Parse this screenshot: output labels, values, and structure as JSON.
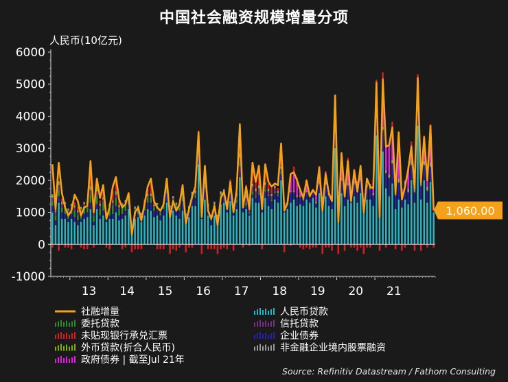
{
  "chart_data": {
    "type": "bar",
    "title": "中国社会融资规模增量分项",
    "ylabel": "人民币(10亿元)",
    "source": "Source: Refinitiv Datastream / Fathom Consulting",
    "ylim": [
      -1000,
      6000
    ],
    "yticks": [
      -1000,
      0,
      1000,
      2000,
      3000,
      4000,
      5000,
      6000
    ],
    "ytick_labels": [
      "-1000",
      "0",
      "1000",
      "2000",
      "3000",
      "4000",
      "5000",
      "6000"
    ],
    "x_start": "2012-07",
    "x_end": "2021-07",
    "xtick_labels": [
      "13",
      "14",
      "15",
      "16",
      "17",
      "18",
      "19",
      "20",
      "21"
    ],
    "grid": false,
    "legend_position": "bottom",
    "stacked": true,
    "latest_value_label": "1,060.00",
    "colors": {
      "total": "#f5a11a",
      "rmb_loans": "#2bb3c4",
      "entrusted": "#2e8b2e",
      "trust": "#7a2f86",
      "bankers_acceptance": "#d42020",
      "corporate_bonds": "#2323a8",
      "fx_loans": "#7fae1a",
      "equity": "#9a9a9a",
      "gov_bonds": "#e020e0"
    },
    "legend": [
      {
        "key": "total",
        "label": "社融增量",
        "kind": "line"
      },
      {
        "key": "rmb_loans",
        "label": "人民币贷款",
        "kind": "bar"
      },
      {
        "key": "entrusted",
        "label": "委托贷款",
        "kind": "bar"
      },
      {
        "key": "trust",
        "label": "信托贷款",
        "kind": "bar"
      },
      {
        "key": "bankers_acceptance",
        "label": "未贴现银行承兑汇票",
        "kind": "bar"
      },
      {
        "key": "corporate_bonds",
        "label": "企业债券",
        "kind": "bar"
      },
      {
        "key": "fx_loans",
        "label": "外币贷款(折合人民币)",
        "kind": "bar"
      },
      {
        "key": "equity",
        "label": "非金融企业境内股票融资",
        "kind": "bar"
      },
      {
        "key": "gov_bonds",
        "label": "政府债券 | 截至Jul 21年",
        "kind": "bar"
      }
    ],
    "total_series": [
      2500,
      1100,
      2550,
      1600,
      1150,
      900,
      1050,
      1550,
      1350,
      900,
      1150,
      1200,
      2600,
      1000,
      2050,
      1450,
      1850,
      800,
      1150,
      1800,
      2100,
      1400,
      1150,
      1250,
      1600,
      300,
      1000,
      1150,
      750,
      1250,
      1800,
      2050,
      1350,
      1150,
      1050,
      1250,
      2050,
      850,
      1350,
      1050,
      1250,
      1850,
      650,
      1100,
      1500,
      1800,
      3500,
      850,
      2450,
      1050,
      800,
      1200,
      600,
      1450,
      1650,
      1100,
      1950,
      1000,
      1700,
      3750,
      1150,
      1800,
      1100,
      2550,
      1950,
      2450,
      1100,
      2500,
      1950,
      1800,
      1900,
      1850,
      3150,
      1050,
      1300,
      2200,
      2250,
      2000,
      1700,
      1450,
      2000,
      1500,
      1700,
      1550,
      2400,
      1050,
      2200,
      1600,
      1350,
      4650,
      700,
      2850,
      1500,
      2600,
      1350,
      2300,
      1650,
      2450,
      1000,
      2050,
      1800,
      1750,
      5050,
      850,
      5150,
      3050,
      3100,
      3650,
      1600,
      3500,
      1400,
      1800,
      2350,
      3050,
      1750,
      5200,
      1950,
      3350,
      2000,
      3700,
      1060
    ],
    "series": [
      {
        "name": "人民币贷款",
        "key": "rmb_loans",
        "values": [
          1000,
          600,
          1300,
          800,
          800,
          700,
          800,
          700,
          600,
          700,
          800,
          850,
          1100,
          600,
          1100,
          800,
          900,
          700,
          800,
          800,
          1000,
          750,
          800,
          900,
          1100,
          300,
          800,
          850,
          700,
          900,
          1100,
          1050,
          850,
          900,
          750,
          900,
          1300,
          900,
          1050,
          900,
          800,
          1050,
          700,
          850,
          1200,
          1200,
          2500,
          800,
          1400,
          900,
          600,
          900,
          700,
          1250,
          1300,
          1000,
          1350,
          900,
          1100,
          2100,
          1000,
          1100,
          900,
          1450,
          1300,
          1300,
          1000,
          1450,
          1200,
          1100,
          1400,
          1300,
          2000,
          1000,
          1100,
          1300,
          1400,
          1200,
          1250,
          1200,
          1400,
          1300,
          1450,
          1150,
          1600,
          1200,
          1500,
          1200,
          1100,
          3000,
          800,
          1600,
          1200,
          1400,
          1300,
          1500,
          1300,
          1600,
          1000,
          1400,
          1400,
          1200,
          3400,
          900,
          2900,
          1750,
          1500,
          1900,
          1100,
          1400,
          1150,
          1400,
          1250,
          2000,
          1300,
          3700,
          1400,
          2000,
          1300,
          1950,
          1000
        ]
      },
      {
        "name": "企业债券",
        "key": "corporate_bonds",
        "values": [
          200,
          150,
          200,
          200,
          150,
          100,
          150,
          150,
          150,
          100,
          150,
          150,
          200,
          100,
          150,
          100,
          150,
          50,
          100,
          150,
          200,
          150,
          150,
          150,
          150,
          50,
          100,
          100,
          100,
          150,
          200,
          250,
          200,
          200,
          150,
          200,
          300,
          200,
          250,
          200,
          250,
          300,
          150,
          150,
          200,
          250,
          450,
          250,
          350,
          200,
          150,
          200,
          100,
          200,
          200,
          150,
          250,
          150,
          200,
          350,
          150,
          100,
          50,
          100,
          150,
          250,
          100,
          200,
          300,
          250,
          200,
          200,
          200,
          200,
          100,
          300,
          200,
          250,
          200,
          150,
          200,
          200,
          150,
          100,
          250,
          200,
          350,
          300,
          250,
          450,
          200,
          350,
          250,
          400,
          300,
          350,
          300,
          350,
          300,
          350,
          300,
          300,
          500,
          400,
          650,
          450,
          550,
          600,
          400,
          500,
          350,
          400,
          350,
          450,
          300,
          450,
          400,
          450,
          350,
          450,
          100
        ]
      },
      {
        "name": "委托贷款",
        "key": "entrusted",
        "values": [
          150,
          150,
          200,
          150,
          200,
          150,
          150,
          200,
          150,
          200,
          200,
          150,
          250,
          200,
          250,
          200,
          250,
          150,
          200,
          250,
          250,
          200,
          200,
          200,
          150,
          100,
          150,
          150,
          100,
          150,
          150,
          150,
          100,
          100,
          100,
          100,
          150,
          50,
          100,
          100,
          100,
          150,
          50,
          100,
          100,
          100,
          100,
          50,
          100,
          50,
          50,
          100,
          50,
          50,
          50,
          50,
          100,
          50,
          100,
          100,
          50,
          100,
          50,
          100,
          50,
          50,
          50,
          50,
          50,
          50,
          50,
          50,
          50,
          0,
          0,
          0,
          0,
          0,
          0,
          0,
          0,
          0,
          0,
          0,
          0,
          0,
          0,
          0,
          0,
          0,
          0,
          0,
          0,
          0,
          0,
          0,
          0,
          0,
          0,
          0,
          0,
          0,
          0,
          0,
          0,
          0,
          0,
          0,
          0,
          0,
          0,
          0,
          0,
          0,
          0,
          0,
          0,
          0,
          0,
          0,
          0
        ]
      },
      {
        "name": "信托贷款",
        "key": "trust",
        "values": [
          100,
          100,
          150,
          100,
          100,
          100,
          100,
          100,
          100,
          100,
          100,
          100,
          150,
          100,
          150,
          100,
          100,
          50,
          100,
          100,
          100,
          50,
          50,
          50,
          50,
          30,
          50,
          50,
          30,
          50,
          50,
          50,
          30,
          30,
          30,
          30,
          50,
          0,
          30,
          30,
          30,
          30,
          0,
          30,
          30,
          30,
          50,
          0,
          30,
          30,
          30,
          30,
          0,
          50,
          50,
          50,
          100,
          50,
          100,
          150,
          50,
          150,
          100,
          150,
          150,
          150,
          50,
          150,
          100,
          100,
          100,
          50,
          100,
          50,
          30,
          30,
          30,
          30,
          30,
          30,
          30,
          30,
          30,
          30,
          50,
          30,
          30,
          30,
          30,
          50,
          0,
          50,
          50,
          50,
          30,
          50,
          30,
          50,
          30,
          50,
          30,
          30,
          50,
          30,
          30,
          30,
          30,
          30,
          30,
          30,
          30,
          30,
          30,
          30,
          30,
          30,
          30,
          30,
          30,
          30,
          0
        ]
      },
      {
        "name": "外币贷款(折合人民币)",
        "key": "fx_loans",
        "values": [
          80,
          50,
          100,
          50,
          50,
          50,
          50,
          50,
          50,
          50,
          50,
          50,
          100,
          50,
          100,
          50,
          50,
          30,
          50,
          50,
          80,
          50,
          50,
          50,
          50,
          30,
          50,
          30,
          30,
          30,
          50,
          50,
          30,
          30,
          30,
          30,
          50,
          30,
          30,
          30,
          30,
          30,
          20,
          20,
          30,
          30,
          50,
          20,
          30,
          20,
          20,
          20,
          10,
          20,
          20,
          20,
          30,
          20,
          20,
          40,
          20,
          30,
          20,
          30,
          30,
          30,
          20,
          30,
          20,
          20,
          20,
          20,
          30,
          20,
          20,
          20,
          20,
          20,
          20,
          20,
          20,
          20,
          20,
          20,
          20,
          20,
          20,
          20,
          20,
          30,
          20,
          20,
          20,
          20,
          20,
          20,
          20,
          20,
          20,
          20,
          20,
          20,
          30,
          20,
          30,
          20,
          20,
          20,
          20,
          20,
          20,
          20,
          20,
          30,
          20,
          30,
          20,
          20,
          20,
          20,
          0
        ]
      },
      {
        "name": "非金融企业境内股票融资",
        "key": "equity",
        "values": [
          30,
          20,
          20,
          20,
          20,
          20,
          20,
          20,
          20,
          20,
          20,
          20,
          20,
          20,
          20,
          20,
          20,
          20,
          20,
          20,
          20,
          30,
          30,
          30,
          30,
          20,
          30,
          30,
          30,
          30,
          30,
          30,
          30,
          30,
          30,
          30,
          40,
          30,
          40,
          40,
          40,
          60,
          40,
          50,
          80,
          80,
          100,
          50,
          80,
          60,
          60,
          80,
          60,
          80,
          100,
          80,
          100,
          80,
          80,
          100,
          80,
          80,
          60,
          60,
          60,
          60,
          50,
          60,
          60,
          50,
          50,
          40,
          50,
          40,
          30,
          30,
          30,
          30,
          30,
          30,
          30,
          30,
          30,
          30,
          30,
          30,
          30,
          30,
          30,
          30,
          30,
          30,
          30,
          30,
          30,
          30,
          30,
          30,
          40,
          40,
          40,
          50,
          60,
          50,
          60,
          60,
          80,
          80,
          80,
          100,
          100,
          100,
          80,
          100,
          100,
          100,
          100,
          100,
          100,
          100,
          60
        ]
      },
      {
        "name": "政府债券 | 截至Jul 21年",
        "key": "gov_bonds",
        "values": [
          0,
          0,
          0,
          0,
          0,
          0,
          0,
          0,
          0,
          0,
          0,
          0,
          0,
          0,
          0,
          0,
          0,
          0,
          0,
          0,
          0,
          0,
          0,
          0,
          0,
          0,
          0,
          0,
          0,
          0,
          0,
          0,
          0,
          0,
          0,
          0,
          0,
          0,
          0,
          0,
          0,
          0,
          0,
          0,
          0,
          0,
          0,
          0,
          0,
          0,
          0,
          0,
          0,
          0,
          0,
          0,
          0,
          0,
          0,
          0,
          0,
          0,
          0,
          0,
          0,
          0,
          0,
          0,
          0,
          0,
          0,
          0,
          0,
          0,
          0,
          500,
          600,
          400,
          200,
          100,
          300,
          0,
          0,
          300,
          400,
          0,
          350,
          100,
          100,
          550,
          0,
          500,
          100,
          700,
          0,
          400,
          300,
          400,
          0,
          200,
          100,
          300,
          1000,
          50,
          1400,
          800,
          900,
          1000,
          100,
          1400,
          100,
          50,
          600,
          500,
          50,
          800,
          100,
          700,
          200,
          1150,
          0
        ]
      },
      {
        "name": "未贴现银行承兑汇票",
        "key": "bankers_acceptance",
        "values": [
          -100,
          50,
          -200,
          100,
          -100,
          -100,
          -150,
          100,
          100,
          -100,
          -150,
          -150,
          300,
          -100,
          200,
          100,
          200,
          -100,
          -150,
          300,
          300,
          150,
          -150,
          -100,
          50,
          -250,
          -150,
          -150,
          -150,
          100,
          150,
          300,
          100,
          -150,
          -150,
          -150,
          50,
          -300,
          -150,
          -200,
          -100,
          150,
          -250,
          -100,
          -100,
          100,
          300,
          -300,
          300,
          -150,
          -150,
          -150,
          -300,
          -150,
          -100,
          -150,
          100,
          -200,
          100,
          300,
          -100,
          300,
          -50,
          400,
          200,
          400,
          -150,
          300,
          150,
          200,
          100,
          100,
          400,
          -250,
          0,
          -50,
          150,
          150,
          -100,
          -150,
          -100,
          -150,
          -100,
          -100,
          100,
          -300,
          -100,
          -100,
          -200,
          500,
          -300,
          200,
          -200,
          100,
          -100,
          -100,
          -200,
          -100,
          -300,
          -100,
          -100,
          100,
          100,
          -200,
          300,
          -100,
          100,
          200,
          -150,
          0,
          -200,
          -100,
          100,
          100,
          -200,
          200,
          -200,
          100,
          -100,
          50,
          -100
        ]
      }
    ]
  }
}
